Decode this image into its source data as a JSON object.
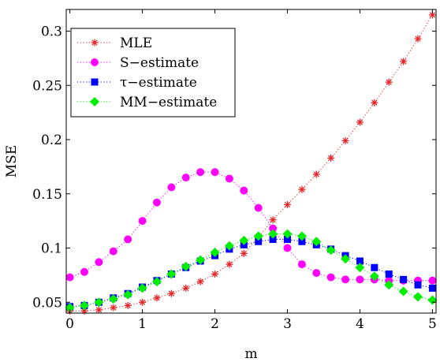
{
  "chart_data": {
    "type": "line",
    "title": "",
    "xlabel": "m",
    "ylabel": "MSE",
    "xlim": [
      -0.05,
      5.05
    ],
    "ylim": [
      0.04,
      0.32
    ],
    "xticks": [
      0,
      1,
      2,
      3,
      4,
      5
    ],
    "xtick_labels": [
      "0",
      "1",
      "2",
      "3",
      "4",
      "5"
    ],
    "yticks": [
      0.05,
      0.1,
      0.15,
      0.2,
      0.25,
      0.3
    ],
    "ytick_labels": [
      "0.05",
      "0.1",
      "0.15",
      "0.2",
      "0.25",
      "0.3"
    ],
    "grid": false,
    "legend_position": "top-left",
    "x": [
      0,
      0.2,
      0.4,
      0.6,
      0.8,
      1.0,
      1.2,
      1.4,
      1.6,
      1.8,
      2.0,
      2.2,
      2.4,
      2.6,
      2.8,
      3.0,
      3.2,
      3.4,
      3.6,
      3.8,
      4.0,
      4.2,
      4.4,
      4.6,
      4.8,
      5.0
    ],
    "series": [
      {
        "name": "MLE",
        "marker": "asterisk",
        "color": "#e8262a",
        "values": [
          0.042,
          0.042,
          0.043,
          0.045,
          0.047,
          0.05,
          0.054,
          0.058,
          0.063,
          0.069,
          0.076,
          0.085,
          0.095,
          0.11,
          0.126,
          0.14,
          0.154,
          0.168,
          0.183,
          0.199,
          0.216,
          0.234,
          0.253,
          0.272,
          0.293,
          0.315
        ]
      },
      {
        "name": "S−estimate",
        "marker": "circle",
        "color": "#ff00ff",
        "values": [
          0.073,
          0.078,
          0.087,
          0.097,
          0.108,
          0.125,
          0.142,
          0.156,
          0.165,
          0.17,
          0.17,
          0.164,
          0.153,
          0.137,
          0.118,
          0.1,
          0.085,
          0.077,
          0.073,
          0.071,
          0.071,
          0.071,
          0.07,
          0.07,
          0.07,
          0.07
        ]
      },
      {
        "name": "τ−estimate",
        "marker": "square",
        "color": "#0000ff",
        "values": [
          0.046,
          0.047,
          0.05,
          0.054,
          0.058,
          0.064,
          0.07,
          0.076,
          0.082,
          0.088,
          0.093,
          0.099,
          0.103,
          0.106,
          0.108,
          0.108,
          0.106,
          0.103,
          0.099,
          0.093,
          0.088,
          0.082,
          0.076,
          0.071,
          0.066,
          0.063
        ]
      },
      {
        "name": "MM−estimate",
        "marker": "diamond",
        "color": "#00ee00",
        "values": [
          0.045,
          0.047,
          0.05,
          0.053,
          0.057,
          0.063,
          0.069,
          0.076,
          0.083,
          0.089,
          0.096,
          0.102,
          0.107,
          0.111,
          0.113,
          0.113,
          0.111,
          0.106,
          0.098,
          0.09,
          0.082,
          0.074,
          0.066,
          0.06,
          0.055,
          0.052
        ]
      }
    ]
  }
}
